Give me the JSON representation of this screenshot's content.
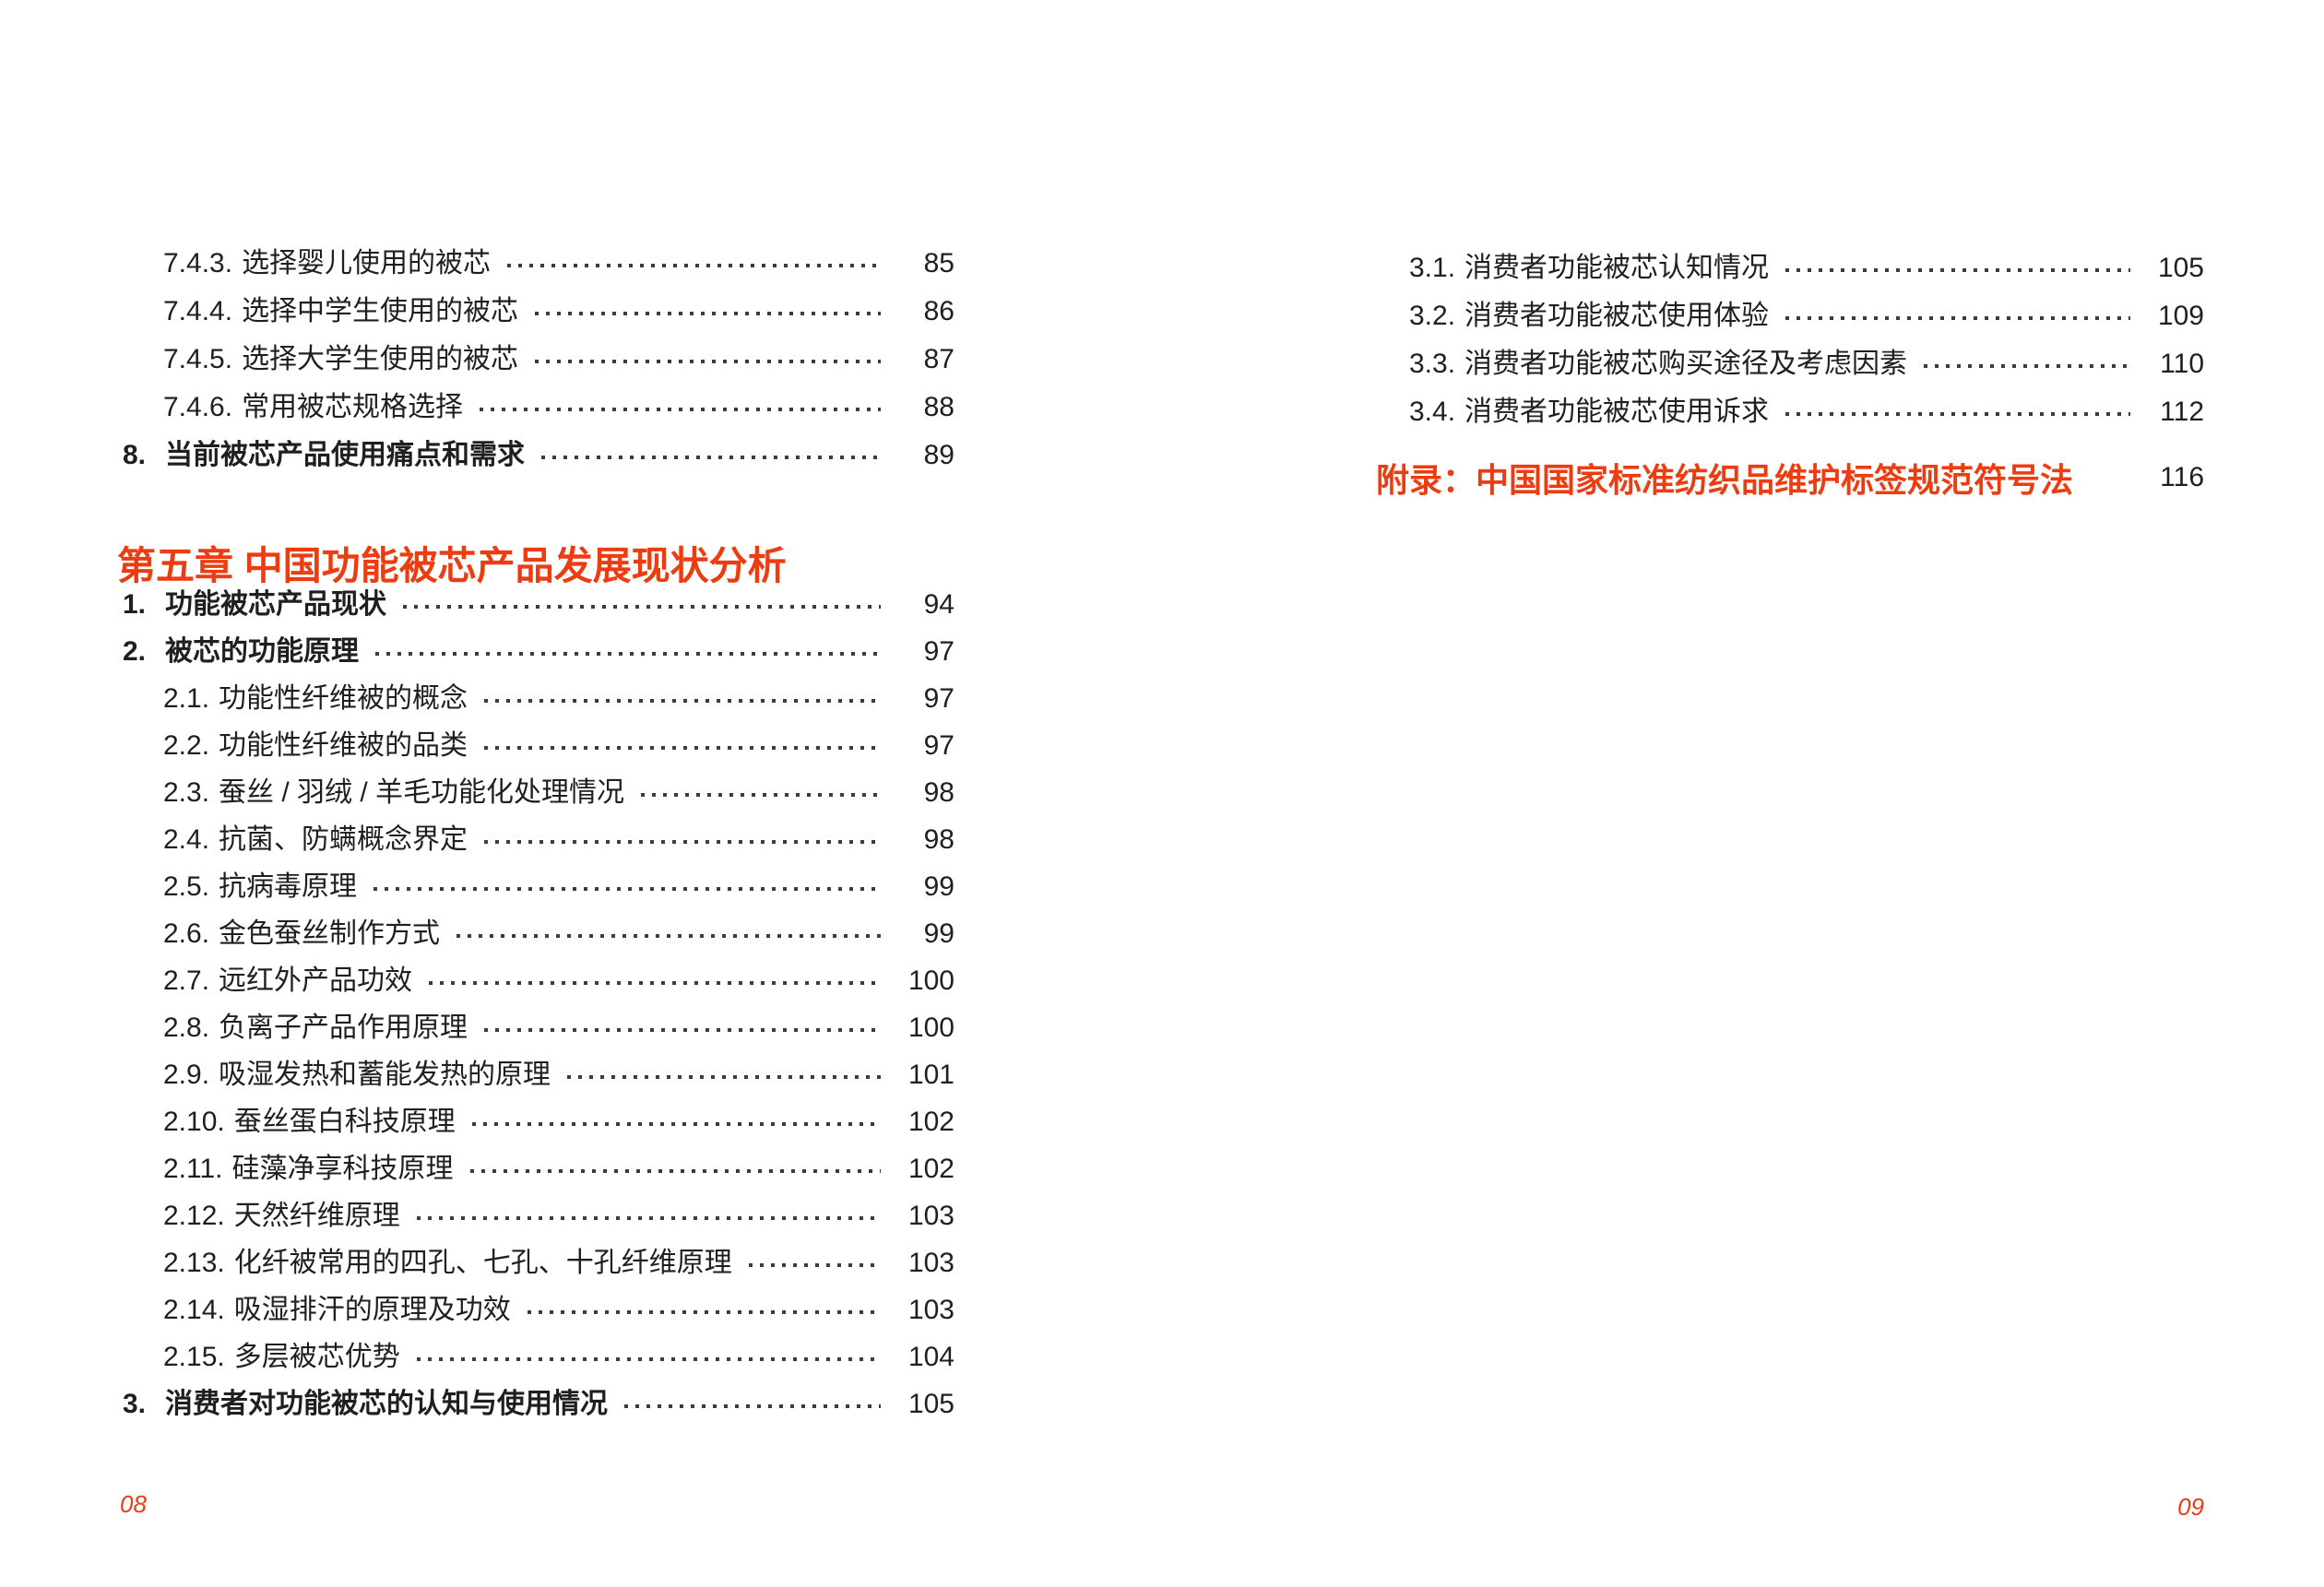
{
  "colors": {
    "accent": "#EC3C10",
    "text": "#1F1F1F",
    "dots": "#3C3C3C",
    "background": "#FFFFFF"
  },
  "left_page": {
    "top_entries": [
      {
        "num": "7.4.3.",
        "text": "选择婴儿使用的被芯",
        "page": "85",
        "level": 2
      },
      {
        "num": "7.4.4.",
        "text": "选择中学生使用的被芯",
        "page": "86",
        "level": 2
      },
      {
        "num": "7.4.5.",
        "text": "选择大学生使用的被芯",
        "page": "87",
        "level": 2
      },
      {
        "num": "7.4.6.",
        "text": "常用被芯规格选择",
        "page": "88",
        "level": 2
      },
      {
        "num": "8.",
        "text": "当前被芯产品使用痛点和需求",
        "page": "89",
        "level": 1
      }
    ],
    "chapter_heading": "第五章 中国功能被芯产品发展现状分析",
    "chapter_entries": [
      {
        "num": "1.",
        "text": "功能被芯产品现状",
        "page": "94",
        "level": 1
      },
      {
        "num": "2.",
        "text": "被芯的功能原理",
        "page": "97",
        "level": 1
      },
      {
        "num": "2.1.",
        "text": "功能性纤维被的概念",
        "page": "97",
        "level": 2
      },
      {
        "num": "2.2.",
        "text": "功能性纤维被的品类",
        "page": "97",
        "level": 2
      },
      {
        "num": "2.3.",
        "text": "蚕丝 / 羽绒 / 羊毛功能化处理情况",
        "page": "98",
        "level": 2
      },
      {
        "num": "2.4.",
        "text": "抗菌、防螨概念界定",
        "page": "98",
        "level": 2
      },
      {
        "num": "2.5.",
        "text": "抗病毒原理",
        "page": "99",
        "level": 2
      },
      {
        "num": "2.6.",
        "text": "金色蚕丝制作方式",
        "page": "99",
        "level": 2
      },
      {
        "num": "2.7.",
        "text": "远红外产品功效",
        "page": "100",
        "level": 2
      },
      {
        "num": "2.8.",
        "text": "负离子产品作用原理",
        "page": "100",
        "level": 2
      },
      {
        "num": "2.9.",
        "text": "吸湿发热和蓄能发热的原理",
        "page": "101",
        "level": 2
      },
      {
        "num": "2.10.",
        "text": "蚕丝蛋白科技原理",
        "page": "102",
        "level": 2
      },
      {
        "num": "2.11.",
        "text": "硅藻净享科技原理",
        "page": "102",
        "level": 2
      },
      {
        "num": "2.12.",
        "text": "天然纤维原理",
        "page": "103",
        "level": 2
      },
      {
        "num": "2.13.",
        "text": "化纤被常用的四孔、七孔、十孔纤维原理",
        "page": "103",
        "level": 2
      },
      {
        "num": "2.14.",
        "text": "吸湿排汗的原理及功效",
        "page": "103",
        "level": 2
      },
      {
        "num": "2.15.",
        "text": "多层被芯优势",
        "page": "104",
        "level": 2
      },
      {
        "num": "3.",
        "text": "消费者对功能被芯的认知与使用情况",
        "page": "105",
        "level": 1
      }
    ],
    "footer_page_number": "08"
  },
  "right_page": {
    "entries": [
      {
        "num": "3.1.",
        "text": "消费者功能被芯认知情况",
        "page": "105",
        "level": 2
      },
      {
        "num": "3.2.",
        "text": "消费者功能被芯使用体验",
        "page": "109",
        "level": 2
      },
      {
        "num": "3.3.",
        "text": "消费者功能被芯购买途径及考虑因素",
        "page": "110",
        "level": 2
      },
      {
        "num": "3.4.",
        "text": "消费者功能被芯使用诉求",
        "page": "112",
        "level": 2
      }
    ],
    "appendix": {
      "text": "附录：中国国家标准纺织品维护标签规范符号法",
      "page": "116"
    },
    "footer_page_number": "09"
  }
}
